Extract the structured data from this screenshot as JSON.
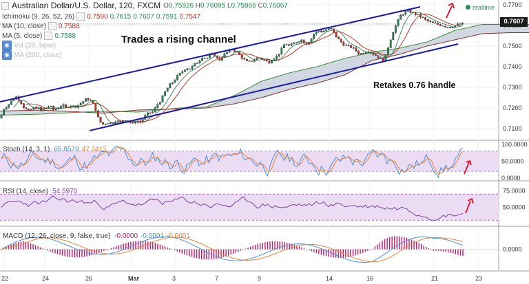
{
  "header": {
    "symbol": "Australian Dollar/U.S. Dollar, 120, FXCM",
    "ohlc": {
      "o_label": "O",
      "o": "0.75926",
      "h_label": "H",
      "h": "0.76095",
      "l_label": "L",
      "l": "0.75866",
      "c_label": "C",
      "c": "0.76067"
    },
    "realtime_label": "realtime",
    "current_price": "0.7607"
  },
  "indicators": [
    {
      "label": "Ichimoku (9, 26, 52, 26)",
      "values": [
        "0.7590",
        "0.7615",
        "0.7607",
        "0.7591",
        "0.7547"
      ],
      "colors": [
        "#c0392b",
        "#2e8b57",
        "#2e8b57",
        "#2e8b57",
        "#c0392b"
      ],
      "visible": true
    },
    {
      "label": "MA (10, close)",
      "values": [
        "0.7588"
      ],
      "colors": [
        "#c0392b"
      ],
      "visible": true
    },
    {
      "label": "MA (5, close)",
      "values": [
        "0.7588"
      ],
      "colors": [
        "#2e8b57"
      ],
      "visible": true
    },
    {
      "label": "Vol (20, false)",
      "values": [],
      "colors": [],
      "visible": false
    },
    {
      "label": "MA (200, close)",
      "values": [],
      "colors": [],
      "visible": false
    }
  ],
  "annotations": {
    "channel": "Trades a rising channel",
    "handle": "Retakes 0.76 handle"
  },
  "colors": {
    "candle_up": "#2e8b57",
    "candle_down": "#c0392b",
    "channel": "#1a1aa8",
    "cloud": "#c3cbd8",
    "arrow": "#e0102a",
    "stoch_k": "#4a90d9",
    "stoch_d": "#e8843a",
    "rsi": "#7b3f9e",
    "macd": "#4a90d9",
    "signal": "#e8843a",
    "hist": "#c2186b",
    "band_fill": "#ecdcf3"
  },
  "x_axis": {
    "ticks": [
      "22",
      "24",
      "26",
      "Mar",
      "3",
      "7",
      "9",
      "14",
      "16",
      "21",
      "23"
    ]
  },
  "panels": {
    "price": {
      "ticks": [
        "0.7700",
        "0.7600",
        "0.7500",
        "0.7400",
        "0.7300",
        "0.7200",
        "0.7100"
      ]
    },
    "stoch": {
      "label": "Stoch (14, 3, 1)",
      "values": [
        "65.8579",
        "47.3412"
      ],
      "ticks": [
        "100.0000",
        "50.0000",
        "0.0000"
      ]
    },
    "rsi": {
      "label": "RSI (14, close)",
      "values": [
        "54.5970"
      ],
      "ticks": [
        "75.0000",
        "50.0000"
      ]
    },
    "macd": {
      "label": "MACD (12, 26, close, 9, false, true)",
      "values": [
        "-0.0000",
        "-0.0001",
        "-0.0001"
      ],
      "ticks": [
        "0.0000"
      ]
    }
  },
  "chart_data": {
    "type": "candlestick",
    "title": "Australian Dollar/U.S. Dollar, 120, FXCM",
    "xlabel": "",
    "ylabel": "",
    "ylim": [
      0.706,
      0.771
    ],
    "y_ticks": [
      0.77,
      0.76,
      0.75,
      0.74,
      0.73,
      0.72,
      0.71
    ],
    "x_tick_labels": [
      "22",
      "24",
      "26",
      "Mar",
      "3",
      "7",
      "9",
      "14",
      "16",
      "21",
      "23"
    ],
    "close_path": [
      [
        0,
        0.715
      ],
      [
        6,
        0.72
      ],
      [
        12,
        0.7215
      ],
      [
        18,
        0.724
      ],
      [
        24,
        0.7255
      ],
      [
        30,
        0.723
      ],
      [
        36,
        0.7195
      ],
      [
        42,
        0.7185
      ],
      [
        48,
        0.72
      ],
      [
        54,
        0.7205
      ],
      [
        60,
        0.7185
      ],
      [
        66,
        0.72
      ],
      [
        72,
        0.721
      ],
      [
        78,
        0.719
      ],
      [
        84,
        0.72
      ],
      [
        90,
        0.7215
      ],
      [
        96,
        0.72
      ],
      [
        102,
        0.7215
      ],
      [
        108,
        0.7205
      ],
      [
        114,
        0.7215
      ],
      [
        120,
        0.723
      ],
      [
        126,
        0.7245
      ],
      [
        132,
        0.7235
      ],
      [
        138,
        0.72
      ],
      [
        144,
        0.7135
      ],
      [
        150,
        0.712
      ],
      [
        156,
        0.713
      ],
      [
        162,
        0.7125
      ],
      [
        168,
        0.714
      ],
      [
        174,
        0.713
      ],
      [
        180,
        0.7145
      ],
      [
        186,
        0.714
      ],
      [
        192,
        0.712
      ],
      [
        198,
        0.714
      ],
      [
        204,
        0.713
      ],
      [
        210,
        0.716
      ],
      [
        216,
        0.7175
      ],
      [
        222,
        0.718
      ],
      [
        228,
        0.7215
      ],
      [
        234,
        0.724
      ],
      [
        240,
        0.728
      ],
      [
        246,
        0.731
      ],
      [
        252,
        0.733
      ],
      [
        258,
        0.7355
      ],
      [
        264,
        0.7375
      ],
      [
        270,
        0.7395
      ],
      [
        276,
        0.739
      ],
      [
        282,
        0.741
      ],
      [
        288,
        0.7425
      ],
      [
        294,
        0.745
      ],
      [
        300,
        0.744
      ],
      [
        306,
        0.746
      ],
      [
        312,
        0.7455
      ],
      [
        318,
        0.743
      ],
      [
        324,
        0.7455
      ],
      [
        330,
        0.747
      ],
      [
        336,
        0.7485
      ],
      [
        342,
        0.7475
      ],
      [
        348,
        0.7455
      ],
      [
        354,
        0.7435
      ],
      [
        360,
        0.742
      ],
      [
        366,
        0.743
      ],
      [
        372,
        0.744
      ],
      [
        378,
        0.7445
      ],
      [
        384,
        0.743
      ],
      [
        390,
        0.742
      ],
      [
        396,
        0.744
      ],
      [
        402,
        0.745
      ],
      [
        408,
        0.748
      ],
      [
        414,
        0.7515
      ],
      [
        420,
        0.75
      ],
      [
        426,
        0.751
      ],
      [
        432,
        0.7525
      ],
      [
        438,
        0.753
      ],
      [
        444,
        0.751
      ],
      [
        450,
        0.7525
      ],
      [
        456,
        0.756
      ],
      [
        462,
        0.7575
      ],
      [
        468,
        0.757
      ],
      [
        474,
        0.758
      ],
      [
        480,
        0.7585
      ],
      [
        486,
        0.7555
      ],
      [
        492,
        0.753
      ],
      [
        498,
        0.751
      ],
      [
        504,
        0.75
      ],
      [
        510,
        0.7495
      ],
      [
        516,
        0.748
      ],
      [
        522,
        0.746
      ],
      [
        528,
        0.747
      ],
      [
        534,
        0.748
      ],
      [
        540,
        0.7465
      ],
      [
        546,
        0.7455
      ],
      [
        552,
        0.744
      ],
      [
        558,
        0.743
      ],
      [
        564,
        0.75
      ],
      [
        570,
        0.7565
      ],
      [
        576,
        0.761
      ],
      [
        582,
        0.765
      ],
      [
        588,
        0.7665
      ],
      [
        594,
        0.767
      ],
      [
        600,
        0.766
      ],
      [
        606,
        0.765
      ],
      [
        612,
        0.764
      ],
      [
        618,
        0.7625
      ],
      [
        624,
        0.7615
      ],
      [
        630,
        0.761
      ],
      [
        636,
        0.7605
      ],
      [
        642,
        0.76
      ],
      [
        648,
        0.7595
      ],
      [
        654,
        0.7592
      ],
      [
        660,
        0.76
      ],
      [
        666,
        0.7605
      ],
      [
        672,
        0.7607
      ]
    ],
    "ichimoku": {
      "span_a": [
        [
          0,
          0.7165
        ],
        [
          60,
          0.717
        ],
        [
          120,
          0.718
        ],
        [
          150,
          0.7185
        ],
        [
          200,
          0.718
        ],
        [
          260,
          0.72
        ],
        [
          300,
          0.7205
        ],
        [
          340,
          0.726
        ],
        [
          380,
          0.733
        ],
        [
          420,
          0.737
        ],
        [
          460,
          0.74
        ],
        [
          500,
          0.744
        ],
        [
          540,
          0.747
        ],
        [
          580,
          0.749
        ],
        [
          620,
          0.752
        ],
        [
          660,
          0.7575
        ],
        [
          700,
          0.7605
        ],
        [
          740,
          0.7605
        ],
        [
          768,
          0.7605
        ]
      ],
      "span_b": [
        [
          0,
          0.7185
        ],
        [
          60,
          0.719
        ],
        [
          120,
          0.718
        ],
        [
          150,
          0.7175
        ],
        [
          200,
          0.719
        ],
        [
          260,
          0.7195
        ],
        [
          300,
          0.72
        ],
        [
          340,
          0.722
        ],
        [
          380,
          0.725
        ],
        [
          420,
          0.729
        ],
        [
          460,
          0.732
        ],
        [
          500,
          0.736
        ],
        [
          540,
          0.743
        ],
        [
          580,
          0.746
        ],
        [
          620,
          0.75
        ],
        [
          660,
          0.753
        ],
        [
          700,
          0.756
        ],
        [
          740,
          0.7565
        ],
        [
          768,
          0.7565
        ]
      ]
    },
    "channel_lines": {
      "upper": [
        [
          0,
          0.723
        ],
        [
          610,
          0.769
        ]
      ],
      "lower": [
        [
          130,
          0.709
        ],
        [
          665,
          0.751
        ]
      ]
    },
    "sub_panels": [
      {
        "name": "Stoch (14, 3, 1)",
        "ylim": [
          0,
          100
        ],
        "upper_band": 80,
        "lower_band": 20
      },
      {
        "name": "RSI (14, close)",
        "ylim": [
          25,
          85
        ],
        "upper_band": 70,
        "lower_band": 30
      },
      {
        "name": "MACD (12, 26, close, 9, false, true)",
        "ylim": [
          -0.0025,
          0.0025
        ]
      }
    ]
  }
}
